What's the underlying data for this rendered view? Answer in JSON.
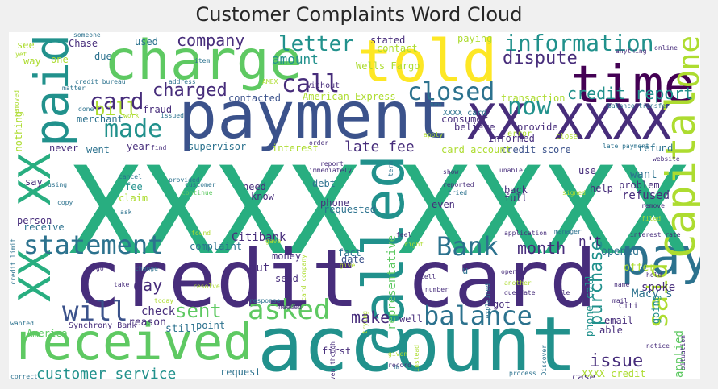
{
  "title": "Customer Complaints Word Cloud",
  "palette": {
    "dark_purple": "#440154",
    "indigo": "#472d7b",
    "blue": "#3b528b",
    "steel": "#2c728e",
    "teal": "#21918c",
    "green": "#28ae80",
    "lime": "#5ec962",
    "yellow_green": "#addc30",
    "yellow": "#fde725"
  },
  "words": [
    {
      "t": "XXXX",
      "c": "green"
    },
    {
      "t": "XXXX",
      "c": "green"
    },
    {
      "t": "credit card",
      "c": "indigo"
    },
    {
      "t": "account",
      "c": "teal"
    },
    {
      "t": "payment",
      "c": "blue"
    },
    {
      "t": "charge",
      "c": "lime"
    },
    {
      "t": "told",
      "c": "yellow"
    },
    {
      "t": "time",
      "c": "dark_purple"
    },
    {
      "t": "XX XXXX",
      "c": "indigo"
    },
    {
      "t": "received",
      "c": "lime"
    },
    {
      "t": "called",
      "c": "teal"
    },
    {
      "t": "pay",
      "c": "steel"
    },
    {
      "t": "paid",
      "c": "teal"
    },
    {
      "t": "XX",
      "c": "green"
    },
    {
      "t": "XX",
      "c": "green"
    },
    {
      "t": "Capital",
      "c": "yellow_green"
    },
    {
      "t": "One",
      "c": "yellow_green"
    },
    {
      "t": "statement",
      "c": "steel"
    },
    {
      "t": "Bank",
      "c": "steel"
    },
    {
      "t": "asked",
      "c": "lime"
    },
    {
      "t": "balance",
      "c": "steel"
    },
    {
      "t": "will",
      "c": "blue"
    },
    {
      "t": "said",
      "c": "yellow_green"
    },
    {
      "t": "made",
      "c": "teal"
    },
    {
      "t": "call",
      "c": "indigo"
    },
    {
      "t": "now",
      "c": "teal"
    },
    {
      "t": "closed",
      "c": "steel"
    },
    {
      "t": "information",
      "c": "teal"
    },
    {
      "t": "letter",
      "c": "teal"
    },
    {
      "t": "company",
      "c": "indigo"
    },
    {
      "t": "card",
      "c": "indigo"
    },
    {
      "t": "charged",
      "c": "indigo"
    },
    {
      "t": "bill",
      "c": "yellow_green"
    },
    {
      "t": "dispute",
      "c": "indigo"
    },
    {
      "t": "credit report",
      "c": "teal"
    },
    {
      "t": "amount",
      "c": "teal"
    },
    {
      "t": "late fee",
      "c": "indigo"
    },
    {
      "t": "sent",
      "c": "lime"
    },
    {
      "t": "month",
      "c": "indigo"
    },
    {
      "t": "day",
      "c": "indigo"
    },
    {
      "t": "make",
      "c": "indigo"
    },
    {
      "t": "purchase",
      "c": "teal"
    },
    {
      "t": "issue",
      "c": "indigo"
    },
    {
      "t": "n't",
      "c": "indigo"
    },
    {
      "t": "customer service",
      "c": "teal"
    },
    {
      "t": "applied",
      "c": "lime"
    },
    {
      "t": "XXXX credit",
      "c": "yellow_green"
    },
    {
      "t": "spoke",
      "c": "indigo"
    },
    {
      "t": "Macy s",
      "c": "steel"
    },
    {
      "t": "going",
      "c": "teal"
    },
    {
      "t": "offer",
      "c": "yellow_green"
    },
    {
      "t": "opened",
      "c": "steel"
    },
    {
      "t": "representative",
      "c": "lime"
    },
    {
      "t": "phone call",
      "c": "teal"
    },
    {
      "t": "Citibank",
      "c": "indigo"
    },
    {
      "t": "complaint",
      "c": "steel"
    },
    {
      "t": "money",
      "c": "indigo"
    },
    {
      "t": "fact",
      "c": "steel"
    },
    {
      "t": "date",
      "c": "blue"
    },
    {
      "t": "put",
      "c": "indigo"
    },
    {
      "t": "send",
      "c": "indigo"
    },
    {
      "t": "check",
      "c": "indigo"
    },
    {
      "t": "reason",
      "c": "indigo"
    },
    {
      "t": "still",
      "c": "steel"
    },
    {
      "t": "point",
      "c": "steel"
    },
    {
      "t": "America",
      "c": "lime"
    },
    {
      "t": "Synchrony Bank",
      "c": "indigo"
    },
    {
      "t": "phone",
      "c": "indigo"
    },
    {
      "t": "requested",
      "c": "steel"
    },
    {
      "t": "know",
      "c": "indigo"
    },
    {
      "t": "need",
      "c": "indigo"
    },
    {
      "t": "debt",
      "c": "steel"
    },
    {
      "t": "claim",
      "c": "yellow_green"
    },
    {
      "t": "fee",
      "c": "teal"
    },
    {
      "t": "say",
      "c": "indigo"
    },
    {
      "t": "refused",
      "c": "indigo"
    },
    {
      "t": "problem",
      "c": "indigo"
    },
    {
      "t": "want",
      "c": "steel"
    },
    {
      "t": "help",
      "c": "indigo"
    },
    {
      "t": "back",
      "c": "indigo"
    },
    {
      "t": "full",
      "c": "indigo"
    },
    {
      "t": "even",
      "c": "indigo"
    },
    {
      "t": "use",
      "c": "indigo"
    },
    {
      "t": "refund",
      "c": "steel"
    },
    {
      "t": "credit score",
      "c": "blue"
    },
    {
      "t": "card account",
      "c": "yellow_green"
    },
    {
      "t": "interest",
      "c": "yellow_green"
    },
    {
      "t": "supervisor",
      "c": "steel"
    },
    {
      "t": "year",
      "c": "indigo"
    },
    {
      "t": "went",
      "c": "steel"
    },
    {
      "t": "never",
      "c": "indigo"
    },
    {
      "t": "merchant",
      "c": "steel"
    },
    {
      "t": "fraud",
      "c": "indigo"
    },
    {
      "t": "work",
      "c": "yellow_green"
    },
    {
      "t": "issued",
      "c": "steel"
    },
    {
      "t": "contacted",
      "c": "blue"
    },
    {
      "t": "American Express",
      "c": "yellow_green"
    },
    {
      "t": "consumer",
      "c": "indigo"
    },
    {
      "t": "believe",
      "c": "indigo"
    },
    {
      "t": "transaction",
      "c": "yellow_green"
    },
    {
      "t": "provide",
      "c": "indigo"
    },
    {
      "t": "close",
      "c": "yellow_green"
    },
    {
      "t": "informed",
      "c": "indigo"
    },
    {
      "t": "XXXX card",
      "c": "steel"
    },
    {
      "t": "balance transfer",
      "c": "steel"
    },
    {
      "t": "late payment",
      "c": "steel"
    },
    {
      "t": "used",
      "c": "steel"
    },
    {
      "t": "Chase",
      "c": "indigo"
    },
    {
      "t": "see",
      "c": "yellow_green"
    },
    {
      "t": "way",
      "c": "yellow_green"
    },
    {
      "t": "one",
      "c": "yellow_green"
    },
    {
      "t": "due",
      "c": "steel"
    },
    {
      "t": "credit bureau",
      "c": "steel"
    },
    {
      "t": "address",
      "c": "steel"
    },
    {
      "t": "item",
      "c": "steel"
    },
    {
      "t": "matter",
      "c": "steel"
    },
    {
      "t": "AMEX",
      "c": "yellow_green"
    },
    {
      "t": "without",
      "c": "indigo"
    },
    {
      "t": "Wells Fargo",
      "c": "yellow_green"
    },
    {
      "t": "stated",
      "c": "indigo"
    },
    {
      "t": "contact",
      "c": "yellow_green"
    },
    {
      "t": "paying",
      "c": "yellow_green"
    },
    {
      "t": "anything",
      "c": "indigo"
    },
    {
      "t": "online",
      "c": "indigo"
    },
    {
      "t": "someone",
      "c": "steel"
    },
    {
      "t": "removed",
      "c": "yellow_green"
    },
    {
      "t": "nothing",
      "c": "yellow_green"
    },
    {
      "t": "done",
      "c": "steel"
    },
    {
      "t": "new",
      "c": "steel"
    },
    {
      "t": "apply",
      "c": "yellow_green"
    },
    {
      "t": "error",
      "c": "yellow_green"
    },
    {
      "t": "find",
      "c": "indigo"
    },
    {
      "t": "order",
      "c": "indigo"
    },
    {
      "t": "report",
      "c": "indigo"
    },
    {
      "t": "immediately",
      "c": "indigo"
    },
    {
      "t": "term",
      "c": "steel"
    },
    {
      "t": "website",
      "c": "indigo"
    },
    {
      "t": "cancel",
      "c": "steel"
    },
    {
      "t": "provided",
      "c": "steel"
    },
    {
      "t": "customer",
      "c": "steel"
    },
    {
      "t": "continue",
      "c": "lime"
    },
    {
      "t": "using",
      "c": "steel"
    },
    {
      "t": "copy",
      "c": "steel"
    },
    {
      "t": "ask",
      "c": "steel"
    },
    {
      "t": "person",
      "c": "indigo"
    },
    {
      "t": "receive",
      "c": "steel"
    },
    {
      "t": "show",
      "c": "indigo"
    },
    {
      "t": "unable",
      "c": "indigo"
    },
    {
      "t": "reported",
      "c": "indigo"
    },
    {
      "t": "tried",
      "c": "steel"
    },
    {
      "t": "signed",
      "c": "yellow_green"
    },
    {
      "t": "remove",
      "c": "indigo"
    },
    {
      "t": "filed",
      "c": "yellow_green"
    },
    {
      "t": "interest rate",
      "c": "indigo"
    },
    {
      "t": "found",
      "c": "yellow_green"
    },
    {
      "t": "gave",
      "c": "yellow_green"
    },
    {
      "t": "feel",
      "c": "indigo"
    },
    {
      "t": "right",
      "c": "yellow_green"
    },
    {
      "t": "application",
      "c": "indigo"
    },
    {
      "t": "manager",
      "c": "steel"
    },
    {
      "t": "credit limit",
      "c": "steel"
    },
    {
      "t": "go",
      "c": "indigo"
    },
    {
      "t": "change",
      "c": "steel"
    },
    {
      "t": "take",
      "c": "indigo"
    },
    {
      "t": "resolve",
      "c": "yellow_green"
    },
    {
      "t": "today",
      "c": "yellow_green"
    },
    {
      "t": "wanted",
      "c": "steel"
    },
    {
      "t": "response",
      "c": "steel"
    },
    {
      "t": "needed",
      "c": "indigo"
    },
    {
      "t": "trying",
      "c": "yellow_green"
    },
    {
      "t": "give",
      "c": "yellow_green"
    },
    {
      "t": "tell",
      "c": "indigo"
    },
    {
      "t": "number",
      "c": "indigo"
    },
    {
      "t": "explained",
      "c": "steel"
    },
    {
      "t": "open",
      "c": "indigo"
    },
    {
      "t": "another",
      "c": "yellow_green"
    },
    {
      "t": "due date",
      "c": "indigo"
    },
    {
      "t": "file",
      "c": "indigo"
    },
    {
      "t": "mail",
      "c": "indigo"
    },
    {
      "t": "email",
      "c": "indigo"
    },
    {
      "t": "able",
      "c": "indigo"
    },
    {
      "t": "notice",
      "c": "indigo"
    },
    {
      "t": "situation",
      "c": "indigo"
    },
    {
      "t": "hold",
      "c": "indigo"
    },
    {
      "t": "name",
      "c": "indigo"
    },
    {
      "t": "Citi",
      "c": "indigo"
    },
    {
      "t": "got",
      "c": "indigo"
    },
    {
      "t": "well",
      "c": "indigo"
    },
    {
      "t": "first",
      "c": "indigo"
    },
    {
      "t": "given",
      "c": "yellow_green"
    },
    {
      "t": "record",
      "c": "indigo"
    },
    {
      "t": "instead",
      "c": "yellow_green"
    },
    {
      "t": "request",
      "c": "steel"
    },
    {
      "t": "process",
      "c": "steel"
    },
    {
      "t": "Discover",
      "c": "steel"
    },
    {
      "t": "case",
      "c": "indigo"
    },
    {
      "t": "correct",
      "c": "steel"
    },
    {
      "t": "yet",
      "c": "yellow_green"
    },
    {
      "t": "even though",
      "c": "indigo"
    },
    {
      "t": "card company",
      "c": "yellow_green"
    },
    {
      "t": "u",
      "c": "steel"
    },
    {
      "t": "m",
      "c": "steel"
    }
  ]
}
